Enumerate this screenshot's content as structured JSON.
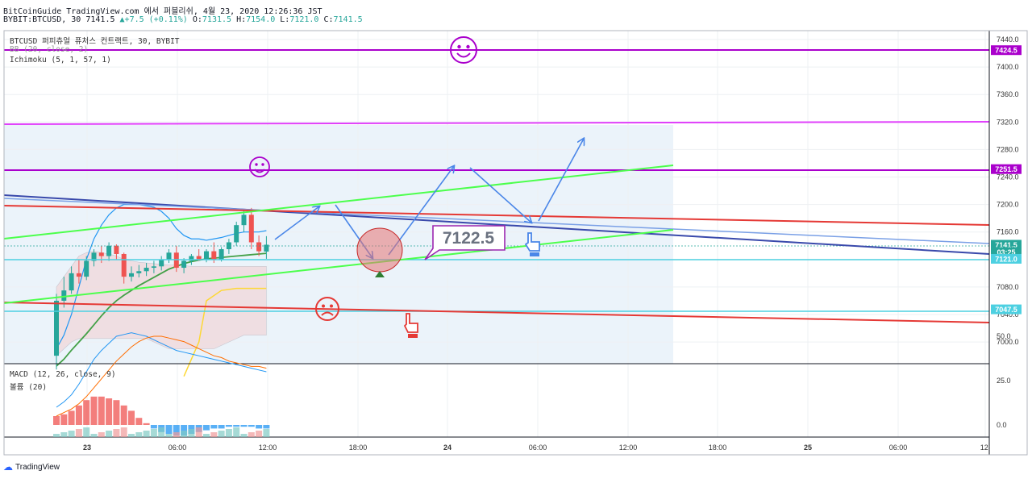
{
  "header": {
    "line1": "BitCoinGuide TradingView.com 에서 퍼블리쉬, 4월 23, 2020 12:26:36 JST",
    "symbol": "BYBIT:BTCUSD, 30",
    "last": "7141.5",
    "change": "+7.5 (+0.11%)",
    "o_label": "O:",
    "o": "7131.5",
    "h_label": "H:",
    "h": "7154.0",
    "l_label": "L:",
    "l": "7121.0",
    "c_label": "C:",
    "c": "7141.5"
  },
  "legend": {
    "title": "BTCUSD 퍼피츄얼 퓨처스 컨트랙트, 30, BYBIT",
    "bb": "BB (20, close, 2)",
    "ichimoku": "Ichimoku (5, 1, 57, 1)",
    "macd": "MACD (12, 26, close, 9)",
    "volume": "볼륨 (20)"
  },
  "footer": {
    "brand": "TradingView"
  },
  "colors": {
    "up": "#26a69a",
    "down": "#ef5350",
    "blue_line": "#3949ab",
    "red_line": "#e53935",
    "green_line": "#4cff4c",
    "cyan_line": "#4dd0e1",
    "purple_line": "#aa00cc",
    "magenta_line": "#e040fb",
    "arrow": "#4a86e8",
    "callout": "#9c27b0"
  },
  "chart_data": {
    "type": "candlestick",
    "price_axis": {
      "min": 6960,
      "max": 7450,
      "ticks": [
        7000,
        7040,
        7080,
        7120,
        7160,
        7200,
        7240,
        7280,
        7320,
        7360,
        7400,
        7440
      ]
    },
    "time_axis": {
      "ticks": [
        "23",
        "06:00",
        "12:00",
        "18:00",
        "24",
        "06:00",
        "12:00",
        "18:00",
        "25",
        "06:00",
        "12:"
      ]
    },
    "price_labels": [
      {
        "label": "7424.5",
        "value": 7424.5,
        "color": "#aa00cc"
      },
      {
        "label": "7251.5",
        "value": 7251.5,
        "color": "#aa00cc"
      },
      {
        "label": "7141.5",
        "value": 7141.5,
        "color": "#26a69a"
      },
      {
        "label": "03:25",
        "value": 7131,
        "color": "#26a69a"
      },
      {
        "label": "7121.0",
        "value": 7121.0,
        "color": "#4dd0e1"
      },
      {
        "label": "7047.5",
        "value": 7047.5,
        "color": "#4dd0e1"
      }
    ],
    "annotation": "7122.5",
    "candles": [
      {
        "o": 6980,
        "h": 7070,
        "l": 6960,
        "c": 7060
      },
      {
        "o": 7060,
        "h": 7095,
        "l": 7050,
        "c": 7075
      },
      {
        "o": 7075,
        "h": 7110,
        "l": 7070,
        "c": 7100
      },
      {
        "o": 7100,
        "h": 7120,
        "l": 7085,
        "c": 7095
      },
      {
        "o": 7095,
        "h": 7125,
        "l": 7090,
        "c": 7118
      },
      {
        "o": 7118,
        "h": 7135,
        "l": 7110,
        "c": 7130
      },
      {
        "o": 7130,
        "h": 7140,
        "l": 7115,
        "c": 7125
      },
      {
        "o": 7125,
        "h": 7145,
        "l": 7118,
        "c": 7140
      },
      {
        "o": 7140,
        "h": 7142,
        "l": 7120,
        "c": 7128
      },
      {
        "o": 7128,
        "h": 7130,
        "l": 7085,
        "c": 7095
      },
      {
        "o": 7095,
        "h": 7110,
        "l": 7088,
        "c": 7100
      },
      {
        "o": 7100,
        "h": 7112,
        "l": 7094,
        "c": 7103
      },
      {
        "o": 7103,
        "h": 7115,
        "l": 7096,
        "c": 7108
      },
      {
        "o": 7108,
        "h": 7118,
        "l": 7100,
        "c": 7110
      },
      {
        "o": 7110,
        "h": 7125,
        "l": 7104,
        "c": 7120
      },
      {
        "o": 7120,
        "h": 7135,
        "l": 7115,
        "c": 7130
      },
      {
        "o": 7130,
        "h": 7140,
        "l": 7102,
        "c": 7108
      },
      {
        "o": 7108,
        "h": 7122,
        "l": 7100,
        "c": 7118
      },
      {
        "o": 7118,
        "h": 7128,
        "l": 7112,
        "c": 7125
      },
      {
        "o": 7125,
        "h": 7135,
        "l": 7118,
        "c": 7120
      },
      {
        "o": 7120,
        "h": 7135,
        "l": 7116,
        "c": 7132
      },
      {
        "o": 7132,
        "h": 7145,
        "l": 7115,
        "c": 7120
      },
      {
        "o": 7120,
        "h": 7138,
        "l": 7117,
        "c": 7135
      },
      {
        "o": 7135,
        "h": 7150,
        "l": 7128,
        "c": 7145
      },
      {
        "o": 7145,
        "h": 7175,
        "l": 7140,
        "c": 7170
      },
      {
        "o": 7170,
        "h": 7192,
        "l": 7160,
        "c": 7185
      },
      {
        "o": 7185,
        "h": 7195,
        "l": 7135,
        "c": 7145
      },
      {
        "o": 7145,
        "h": 7155,
        "l": 7125,
        "c": 7132
      },
      {
        "o": 7131.5,
        "h": 7154,
        "l": 7121,
        "c": 7141.5
      }
    ],
    "macd_axis": {
      "ticks": [
        50.0,
        25.0,
        0.0
      ]
    },
    "macd": {
      "macd_line": [
        10,
        13,
        17,
        23,
        30,
        37,
        42,
        46,
        50,
        51,
        52,
        51,
        50,
        48,
        46,
        44,
        42,
        41,
        40,
        39,
        38,
        37,
        36,
        35,
        34,
        33,
        32,
        31,
        30
      ],
      "signal_line": [
        5,
        7,
        9,
        12,
        16,
        21,
        26,
        31,
        36,
        40,
        44,
        47,
        49,
        50,
        50,
        49,
        48,
        47,
        45,
        43,
        41,
        39,
        38,
        36,
        35,
        34,
        33,
        33,
        32
      ],
      "histogram": [
        5,
        6,
        8,
        11,
        14,
        16,
        16,
        15,
        14,
        11,
        8,
        4,
        1,
        -2,
        -4,
        -5,
        -6,
        -6,
        -5,
        -4,
        -3,
        -2,
        -2,
        -1,
        -1,
        -1,
        -1,
        -2,
        -2
      ]
    }
  }
}
